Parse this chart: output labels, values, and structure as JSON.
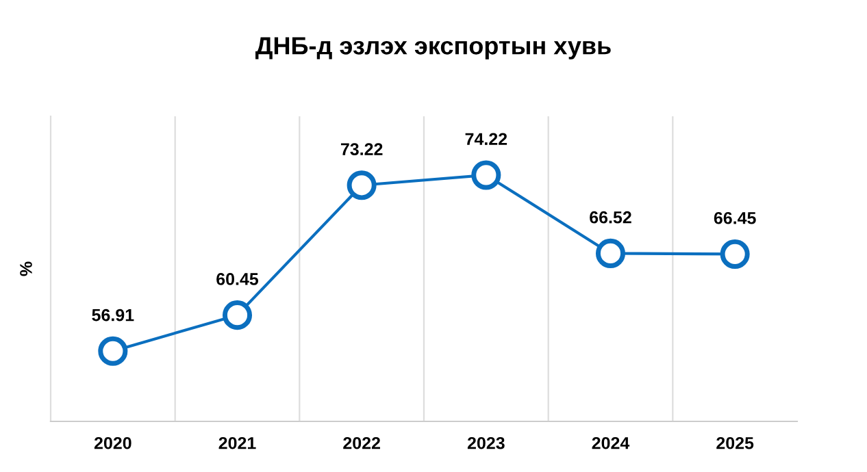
{
  "chart_data": {
    "type": "line",
    "title": "ДНБ-д эзлэх экспортын хувь",
    "ylabel": "%",
    "categories": [
      "2020",
      "2021",
      "2022",
      "2023",
      "2024",
      "2025"
    ],
    "series": [
      {
        "color": "#0b6fbf",
        "values": [
          56.91,
          60.45,
          73.22,
          74.22,
          66.52,
          66.45
        ]
      }
    ],
    "ylim": [
      50,
      80
    ],
    "tick_labels": "x",
    "data_labels": true,
    "grid": "x",
    "marker": "circle",
    "line_style": "solid",
    "legend": false
  }
}
